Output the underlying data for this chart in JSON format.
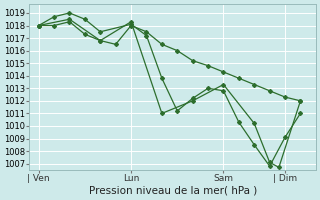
{
  "xlabel": "Pression niveau de la mer( hPa )",
  "background_color": "#ceeaea",
  "grid_color": "#b0d8d8",
  "line_color": "#2d6e2d",
  "marker_color": "#2d6e2d",
  "ylim": [
    1006.5,
    1019.7
  ],
  "yticks": [
    1007,
    1008,
    1009,
    1010,
    1011,
    1012,
    1013,
    1014,
    1015,
    1016,
    1017,
    1018,
    1019
  ],
  "day_labels": [
    "| Ven",
    "Lun",
    "Sam",
    "| Dim"
  ],
  "day_positions": [
    0,
    3,
    6,
    8
  ],
  "xlim": [
    -0.3,
    9.0
  ],
  "series1_x": [
    0,
    0.5,
    1.0,
    1.5,
    2.0,
    3.0,
    3.5,
    4.0,
    4.5,
    5.0,
    5.5,
    6.0,
    6.5,
    7.0,
    7.5,
    8.0,
    8.5
  ],
  "series1_y": [
    1018.0,
    1018.7,
    1019.0,
    1018.5,
    1017.5,
    1018.1,
    1017.2,
    1013.8,
    1011.2,
    1012.2,
    1013.0,
    1012.8,
    1010.3,
    1008.5,
    1006.8,
    1009.1,
    1011.0
  ],
  "series2_x": [
    0,
    0.5,
    1.0,
    1.5,
    2.0,
    2.5,
    3.0,
    3.5,
    4.0,
    4.5,
    5.0,
    5.5,
    6.0,
    6.5,
    7.0,
    7.5,
    8.0,
    8.5
  ],
  "series2_y": [
    1018.0,
    1018.0,
    1018.3,
    1017.3,
    1016.8,
    1016.5,
    1018.0,
    1017.5,
    1016.5,
    1016.0,
    1015.2,
    1014.8,
    1014.3,
    1013.8,
    1013.3,
    1012.8,
    1012.3,
    1012.0
  ],
  "series3_x": [
    0,
    1.0,
    2.0,
    3.0,
    4.0,
    5.0,
    6.0,
    7.0,
    7.5,
    7.8,
    8.5
  ],
  "series3_y": [
    1018.0,
    1018.5,
    1016.8,
    1018.3,
    1011.0,
    1012.0,
    1013.3,
    1010.2,
    1007.1,
    1006.7,
    1012.0
  ]
}
